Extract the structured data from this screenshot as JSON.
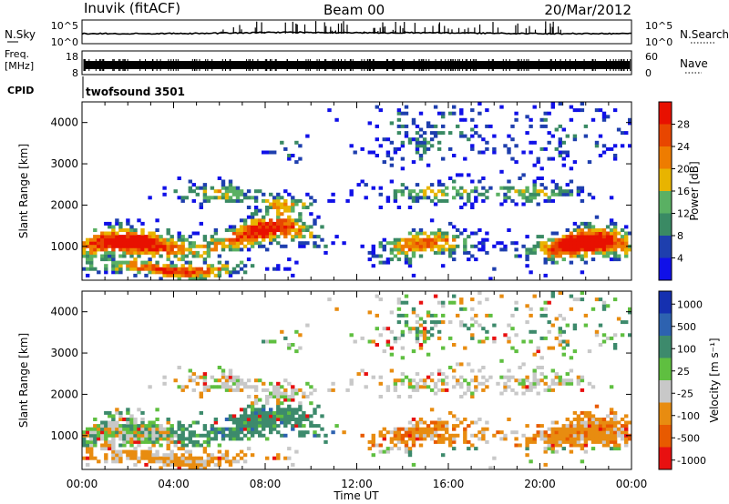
{
  "header": {
    "station": "Inuvik (fitACF)",
    "beam": "Beam 00",
    "date": "20/Mar/2012"
  },
  "noise_panel": {
    "left_label": "N.Sky",
    "right_label": "N.Search",
    "left_ticks": [
      "10^5",
      "10^0"
    ],
    "right_ticks": [
      "10^5",
      "10^0"
    ]
  },
  "freq_panel": {
    "left_label_line1": "Freq.",
    "left_label_line2": "[MHz]",
    "right_label": "Nave",
    "left_ticks": [
      "18",
      "8"
    ],
    "right_ticks": [
      "60",
      "0"
    ]
  },
  "cpid": {
    "label": "CPID",
    "value": "twofsound 3501"
  },
  "colors": {
    "power": [
      "#1010e8",
      "#1e3fae",
      "#3a8a64",
      "#5ab063",
      "#e8b400",
      "#ee7c00",
      "#e84600",
      "#e81000"
    ],
    "velocity": [
      "#1530b0",
      "#2d62b0",
      "#3d8a6c",
      "#5fbf40",
      "#c8c8c8",
      "#e88c10",
      "#e85a00",
      "#e81010"
    ]
  },
  "chart_data": [
    {
      "type": "heatmap",
      "name": "power",
      "xlabel": "",
      "ylabel": "Slant Range [km]",
      "xlim": [
        0,
        24
      ],
      "ylim": [
        180,
        4500
      ],
      "yticks": [
        "1000",
        "2000",
        "3000",
        "4000"
      ],
      "colorbar": {
        "label": "Power [dB]",
        "range": [
          0,
          32
        ],
        "ticks": [
          "4",
          "8",
          "12",
          "16",
          "20",
          "24",
          "28"
        ]
      }
    },
    {
      "type": "heatmap",
      "name": "velocity",
      "xlabel": "Time UT",
      "ylabel": "Slant Range [km]",
      "xlim": [
        0,
        24
      ],
      "ylim": [
        180,
        4500
      ],
      "xticks": [
        "00:00",
        "04:00",
        "08:00",
        "12:00",
        "16:00",
        "20:00",
        "00:00"
      ],
      "yticks": [
        "1000",
        "2000",
        "3000",
        "4000"
      ],
      "colorbar": {
        "label": "Velocity [m s⁻¹]",
        "ticks": [
          "1000",
          "500",
          "100",
          "25",
          "-25",
          "-100",
          "-500",
          "-1000"
        ]
      }
    }
  ]
}
